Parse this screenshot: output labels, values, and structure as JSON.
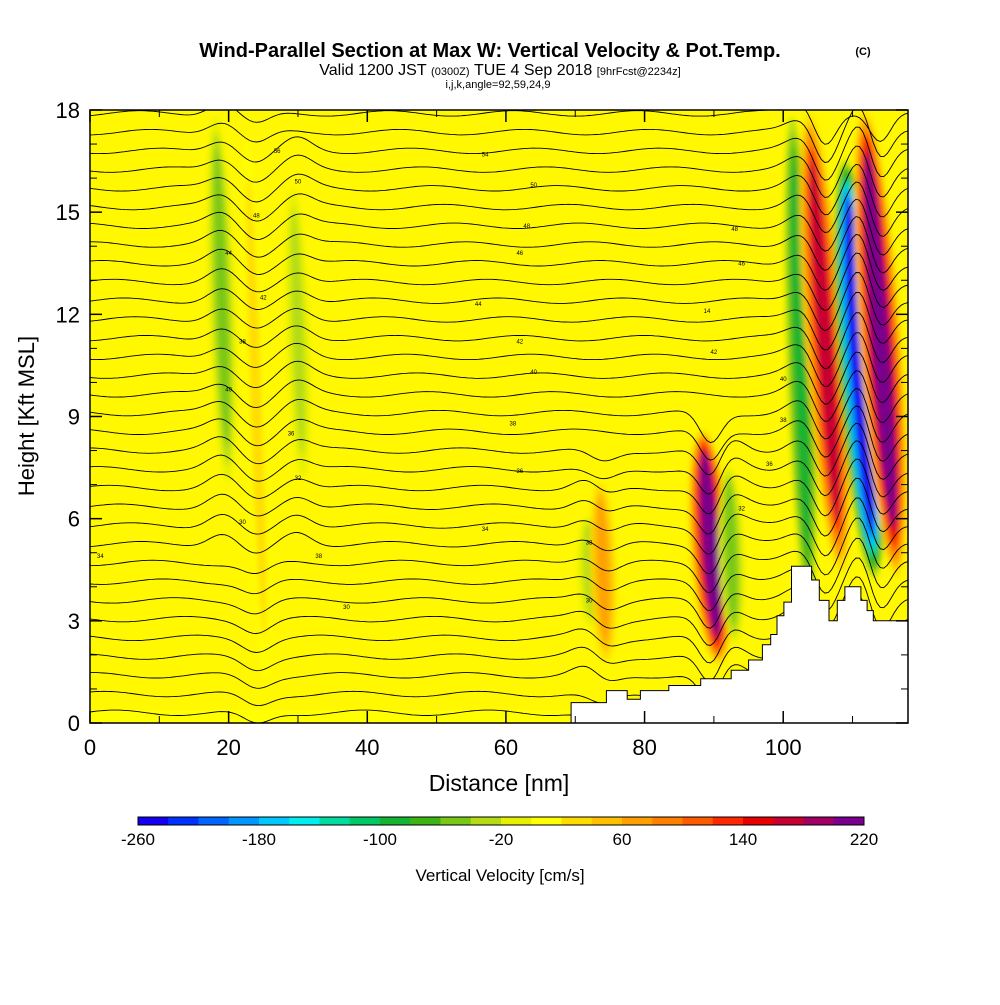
{
  "header": {
    "title": "Wind-Parallel Section at Max W: Vertical Velocity & Pot.Temp.",
    "title_mark": "(C)",
    "valid_prefix": "Valid 1200 JST",
    "valid_utc": "(0300Z)",
    "valid_date": "TUE 4 Sep 2018",
    "forecast": "[9hrFcst@2234z]",
    "slice_info": "i,j,k,angle=92,59,24,9"
  },
  "chart_data": {
    "type": "heatmap",
    "title": "Wind-Parallel Section at Max W: Vertical Velocity & Pot.Temp.",
    "xlabel": "Distance [nm]",
    "ylabel": "Height [Kft MSL]",
    "xlim": [
      0,
      118
    ],
    "ylim": [
      0,
      18
    ],
    "x_ticks": [
      0,
      20,
      40,
      60,
      80,
      100
    ],
    "y_ticks": [
      0,
      3,
      6,
      9,
      12,
      15,
      18
    ],
    "colorbar": {
      "label": "Vertical Velocity [cm/s]",
      "min": -260,
      "max": 220,
      "step": 20,
      "tick_values": [
        -260,
        -180,
        -100,
        -20,
        60,
        140,
        220
      ],
      "colors": [
        "#1400f0",
        "#0032ff",
        "#0064ff",
        "#0096ff",
        "#00c8ff",
        "#00eeee",
        "#00dca0",
        "#00c864",
        "#14b432",
        "#3cb414",
        "#78c814",
        "#b4dc14",
        "#e6f000",
        "#ffff00",
        "#ffdc00",
        "#ffc000",
        "#ffa000",
        "#ff8000",
        "#ff5a00",
        "#ff2800",
        "#e60000",
        "#c80032",
        "#a00064",
        "#78008c"
      ]
    },
    "vertical_velocity_features": [
      {
        "x": 19,
        "z_base": 7,
        "z_top": 18,
        "w": -60,
        "kind": "downdraft"
      },
      {
        "x": 24,
        "z_base": 0.5,
        "z_top": 18,
        "w": 20,
        "kind": "updraft"
      },
      {
        "x": 30,
        "z_base": 7,
        "z_top": 16,
        "w": -40,
        "kind": "downdraft"
      },
      {
        "x": 72,
        "z_base": 3,
        "z_top": 6,
        "w": -40,
        "kind": "downdraft"
      },
      {
        "x": 74,
        "z_base": 2,
        "z_top": 7,
        "w": 60,
        "kind": "updraft"
      },
      {
        "x": 89.5,
        "z_base": 2,
        "z_top": 8.5,
        "w": 200,
        "kind": "updraft"
      },
      {
        "x": 92.5,
        "z_base": 2.5,
        "z_top": 7.5,
        "w": -60,
        "kind": "downdraft"
      },
      {
        "x": 102.5,
        "z_base": 3.5,
        "z_top": 18,
        "w": -100,
        "kind": "downdraft"
      },
      {
        "x": 106,
        "z_base": 4.5,
        "z_top": 18,
        "w": 160,
        "kind": "updraft"
      },
      {
        "x": 111,
        "z_base": 4.5,
        "z_top": 16.5,
        "w": -260,
        "kind": "downdraft"
      },
      {
        "x": 114,
        "z_base": 4.5,
        "z_top": 18,
        "w": 220,
        "kind": "updraft"
      }
    ],
    "theta_labels": [
      {
        "text": "56",
        "x": 27,
        "z": 16.8
      },
      {
        "text": "54",
        "x": 57,
        "z": 16.7
      },
      {
        "text": "50",
        "x": 30,
        "z": 15.9
      },
      {
        "text": "50",
        "x": 64,
        "z": 15.8
      },
      {
        "text": "48",
        "x": 24,
        "z": 14.9
      },
      {
        "text": "48",
        "x": 63,
        "z": 14.6
      },
      {
        "text": "48",
        "x": 93,
        "z": 14.5
      },
      {
        "text": "44",
        "x": 20,
        "z": 13.8
      },
      {
        "text": "46",
        "x": 62,
        "z": 13.8
      },
      {
        "text": "46",
        "x": 94,
        "z": 13.5
      },
      {
        "text": "42",
        "x": 25,
        "z": 12.5
      },
      {
        "text": "44",
        "x": 56,
        "z": 12.3
      },
      {
        "text": "14",
        "x": 89,
        "z": 12.1
      },
      {
        "text": "38",
        "x": 22,
        "z": 11.2
      },
      {
        "text": "42",
        "x": 62,
        "z": 11.2
      },
      {
        "text": "42",
        "x": 90,
        "z": 10.9
      },
      {
        "text": "40",
        "x": 64,
        "z": 10.3
      },
      {
        "text": "40",
        "x": 100,
        "z": 10.1
      },
      {
        "text": "40",
        "x": 20,
        "z": 9.8
      },
      {
        "text": "38",
        "x": 61,
        "z": 8.8
      },
      {
        "text": "38",
        "x": 100,
        "z": 8.9
      },
      {
        "text": "36",
        "x": 29,
        "z": 8.5
      },
      {
        "text": "36",
        "x": 98,
        "z": 7.6
      },
      {
        "text": "36",
        "x": 62,
        "z": 7.4
      },
      {
        "text": "32",
        "x": 30,
        "z": 7.2
      },
      {
        "text": "32",
        "x": 94,
        "z": 6.3
      },
      {
        "text": "30",
        "x": 22,
        "z": 5.9
      },
      {
        "text": "34",
        "x": 57,
        "z": 5.7
      },
      {
        "text": "34",
        "x": 1.5,
        "z": 4.9
      },
      {
        "text": "38",
        "x": 33,
        "z": 4.9
      },
      {
        "text": "38",
        "x": 72,
        "z": 5.3
      },
      {
        "text": "30",
        "x": 37,
        "z": 3.4
      },
      {
        "text": "30",
        "x": 72,
        "z": 3.6
      }
    ],
    "terrain": [
      [
        69.4,
        0.35
      ],
      [
        69.4,
        0.6
      ],
      [
        74.5,
        0.6
      ],
      [
        74.5,
        0.95
      ],
      [
        77.5,
        0.95
      ],
      [
        77.5,
        0.7
      ],
      [
        79.4,
        0.7
      ],
      [
        79.4,
        0.95
      ],
      [
        83.5,
        0.95
      ],
      [
        83.5,
        1.1
      ],
      [
        88.1,
        1.1
      ],
      [
        88.1,
        1.3
      ],
      [
        92.5,
        1.3
      ],
      [
        92.5,
        1.55
      ],
      [
        95,
        1.55
      ],
      [
        95,
        1.85
      ],
      [
        97,
        1.85
      ],
      [
        97,
        2.3
      ],
      [
        98.2,
        2.3
      ],
      [
        98.2,
        2.6
      ],
      [
        99.1,
        2.6
      ],
      [
        99.1,
        3.15
      ],
      [
        100.1,
        3.15
      ],
      [
        100.1,
        3.55
      ],
      [
        101.2,
        3.55
      ],
      [
        101.2,
        4.6
      ],
      [
        104.1,
        4.6
      ],
      [
        104.1,
        4.2
      ],
      [
        105.2,
        4.2
      ],
      [
        105.2,
        3.6
      ],
      [
        106.6,
        3.6
      ],
      [
        106.6,
        3.0
      ],
      [
        107.8,
        3.0
      ],
      [
        107.8,
        3.6
      ],
      [
        108.9,
        3.6
      ],
      [
        108.9,
        4.0
      ],
      [
        111.2,
        4.0
      ],
      [
        111.2,
        3.6
      ],
      [
        112.1,
        3.6
      ],
      [
        112.1,
        3.3
      ],
      [
        113,
        3.3
      ],
      [
        113,
        3.0
      ],
      [
        118,
        3.0
      ],
      [
        118,
        0
      ],
      [
        69.4,
        0
      ]
    ]
  }
}
